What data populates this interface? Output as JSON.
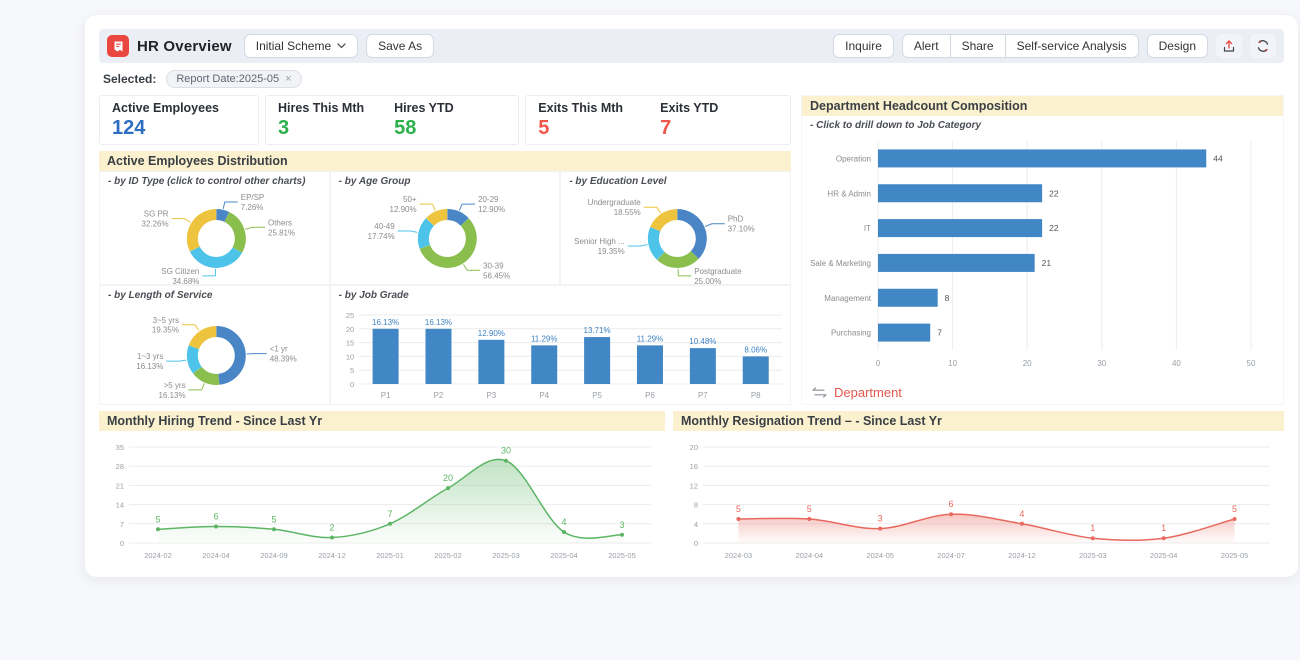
{
  "toolbar": {
    "title": "HR Overview",
    "scheme_label": "Initial Scheme",
    "save_as_label": "Save As",
    "inquire_label": "Inquire",
    "alert_label": "Alert",
    "share_label": "Share",
    "self_service_label": "Self-service Analysis",
    "design_label": "Design"
  },
  "filter_bar": {
    "selected_label": "Selected:",
    "chip_label": "Report Date:2025-05",
    "chip_remove": "×"
  },
  "kpis": [
    {
      "label": "Active Employees",
      "value": "124",
      "color": "#2e6fc1"
    },
    {
      "label": "Hires This Mth",
      "value": "3",
      "color": "#2bb04a"
    },
    {
      "label": "Hires YTD",
      "value": "58",
      "color": "#2bb04a"
    },
    {
      "label": "Exits This Mth",
      "value": "5",
      "color": "#f2574c"
    },
    {
      "label": "Exits YTD",
      "value": "7",
      "color": "#f2574c"
    }
  ],
  "sections": {
    "distribution_title": "Active Employees Distribution"
  },
  "palette": {
    "donut": [
      "#4a86c6",
      "#8abf4e",
      "#4ec3ea",
      "#eec33e"
    ],
    "bar_blue": "#4287c5",
    "bar_label_blue": "#3e82c4",
    "axis_text": "#9aa0a6",
    "grid_line": "#ececec",
    "donut_label_gray": "#8c8c8c",
    "footer_red": "#e4574d",
    "header_cream": "#fbf1cf"
  },
  "chart_data": [
    {
      "id": "id_type",
      "type": "pie",
      "title": "- by ID Type (click to control other charts)",
      "slices": [
        {
          "label": "EP/SP",
          "pct": 7.26
        },
        {
          "label": "Others",
          "pct": 25.81
        },
        {
          "label": "SG Citizen",
          "pct": 34.68
        },
        {
          "label": "SG PR",
          "pct": 32.26
        }
      ]
    },
    {
      "id": "age_group",
      "type": "pie",
      "title": "- by Age Group",
      "slices": [
        {
          "label": "20-29",
          "pct": 12.9
        },
        {
          "label": "30-39",
          "pct": 56.45
        },
        {
          "label": "40-49",
          "pct": 17.74
        },
        {
          "label": "50+",
          "pct": 12.9
        }
      ]
    },
    {
      "id": "education",
      "type": "pie",
      "title": "- by Education Level",
      "slices": [
        {
          "label": "PhD",
          "pct": 37.1
        },
        {
          "label": "Postgraduate",
          "pct": 25.0
        },
        {
          "label": "Senior High ...",
          "pct": 19.35
        },
        {
          "label": "Undergraduate",
          "pct": 18.55
        }
      ]
    },
    {
      "id": "service",
      "type": "pie",
      "title": "- by Length of Service",
      "slices": [
        {
          "label": "<1 yr",
          "pct": 48.39
        },
        {
          "label": ">5 yrs",
          "pct": 16.13
        },
        {
          "label": "1~3 yrs",
          "pct": 16.13
        },
        {
          "label": "3~5 yrs",
          "pct": 19.35
        }
      ]
    },
    {
      "id": "job_grade",
      "type": "bar",
      "title": "- by Job Grade",
      "categories": [
        "P1",
        "P2",
        "P3",
        "P4",
        "P5",
        "P6",
        "P7",
        "P8"
      ],
      "values": [
        20,
        20,
        16,
        14,
        17,
        14,
        13,
        10
      ],
      "labels": [
        "16.13%",
        "16.13%",
        "12.90%",
        "11.29%",
        "13.71%",
        "11.29%",
        "10.48%",
        "8.06%"
      ],
      "ylim": [
        0,
        25
      ],
      "yticks": [
        0,
        5,
        10,
        15,
        20,
        25
      ]
    },
    {
      "id": "dept",
      "type": "bar",
      "orientation": "horizontal",
      "title": "Department Headcount Composition",
      "subtitle": "- Click to drill down to Job Category",
      "categories": [
        "Operation",
        "HR & Admin",
        "IT",
        "Sale & Marketing",
        "Management",
        "Purchasing"
      ],
      "values": [
        44,
        22,
        22,
        21,
        8,
        7
      ],
      "xlim": [
        0,
        50
      ],
      "xticks": [
        0,
        10,
        20,
        30,
        40,
        50
      ],
      "footer": "Department"
    },
    {
      "id": "hiring",
      "type": "area",
      "title": "Monthly Hiring Trend - Since Last Yr",
      "x": [
        "2024-02",
        "2024-04",
        "2024-09",
        "2024-12",
        "2025-01",
        "2025-02",
        "2025-03",
        "2025-04",
        "2025-05"
      ],
      "values": [
        5,
        6,
        5,
        2,
        7,
        20,
        30,
        4,
        3
      ],
      "ylim": [
        0,
        35
      ],
      "yticks": [
        0,
        7,
        14,
        21,
        28,
        35
      ],
      "color": "#5cb564"
    },
    {
      "id": "resignation",
      "type": "area",
      "title": "Monthly Resignation Trend –  - Since Last Yr",
      "x": [
        "2024-03",
        "2024-04",
        "2024-05",
        "2024-07",
        "2024-12",
        "2025-03",
        "2025-04",
        "2025-05"
      ],
      "values": [
        5,
        5,
        3,
        6,
        4,
        1,
        1,
        5
      ],
      "ylim": [
        0,
        20
      ],
      "yticks": [
        0,
        4,
        8,
        12,
        16,
        20
      ],
      "color": "#e8695e"
    }
  ]
}
